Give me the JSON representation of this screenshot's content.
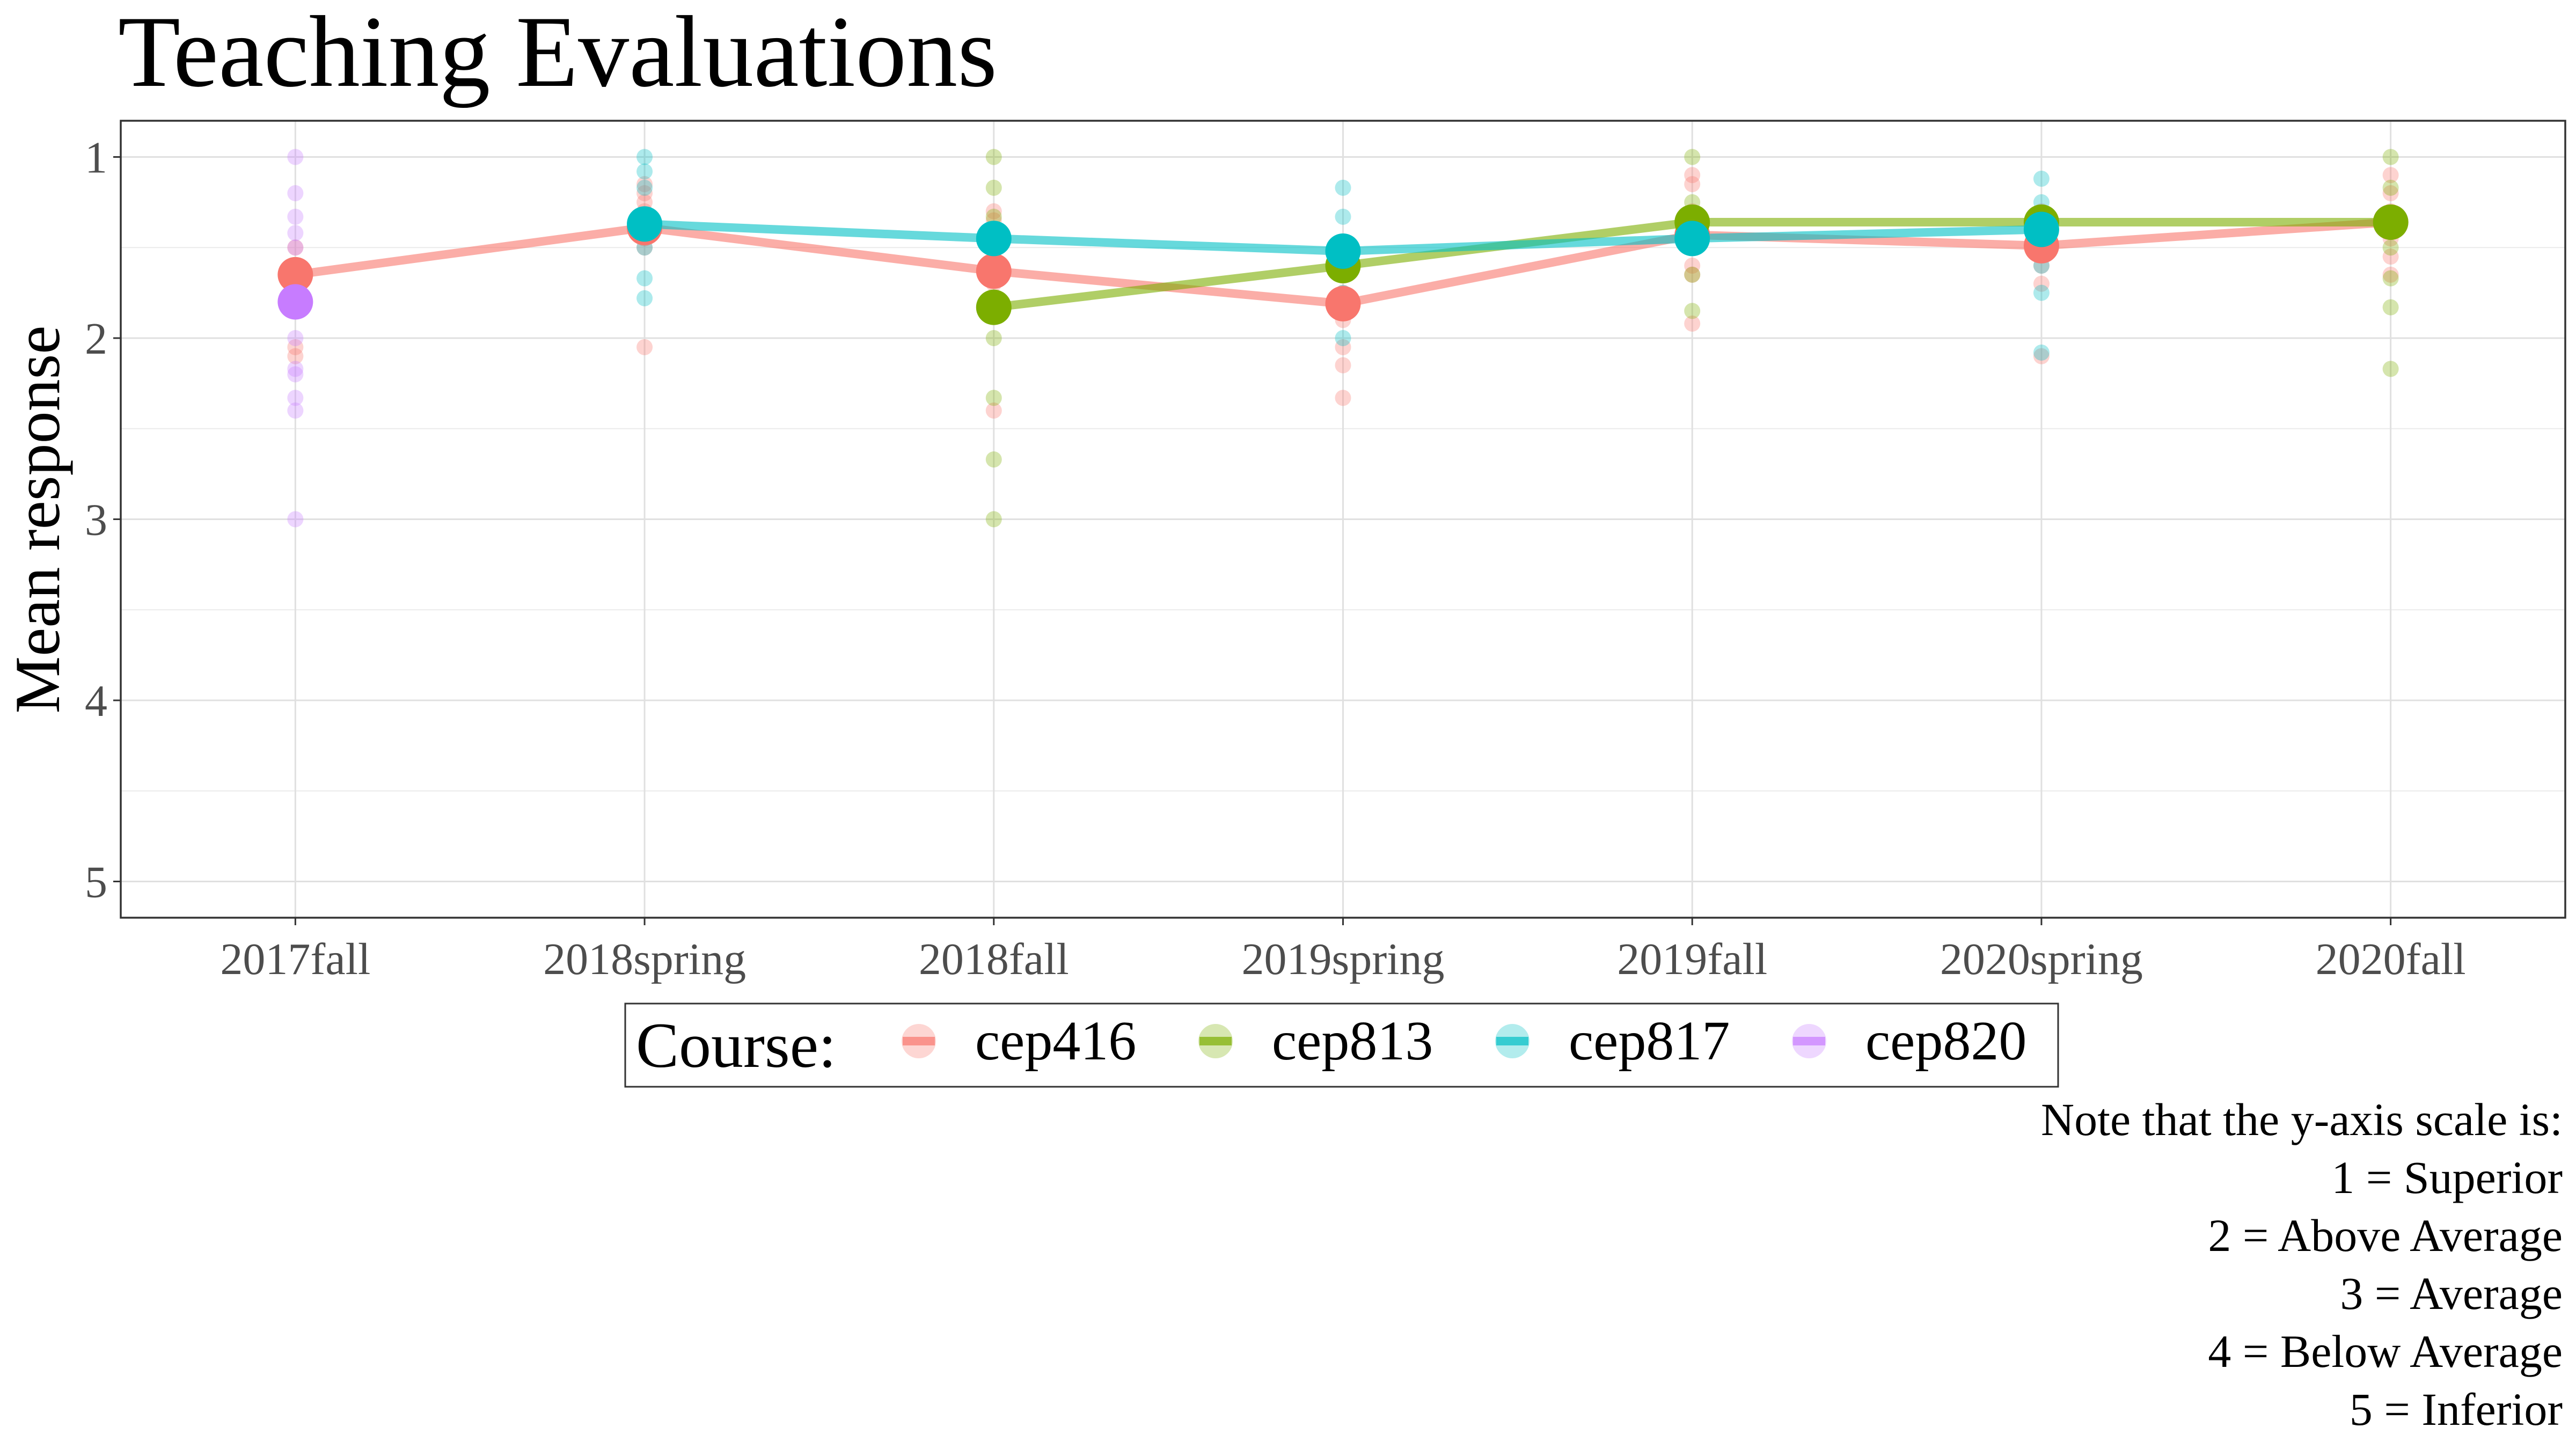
{
  "chart_data": {
    "type": "line",
    "title": "Teaching Evaluations",
    "xlabel": "",
    "ylabel": "Mean response",
    "categories": [
      "2017fall",
      "2018spring",
      "2018fall",
      "2019spring",
      "2019fall",
      "2020spring",
      "2020fall"
    ],
    "ylim": [
      5.2,
      0.8
    ],
    "y_reversed": true,
    "yticks": [
      "1",
      "2",
      "3",
      "4",
      "5"
    ],
    "grid": true,
    "legend": {
      "title": "Course:",
      "position": "bottom",
      "entries": [
        "cep416",
        "cep813",
        "cep817",
        "cep820"
      ]
    },
    "series": [
      {
        "name": "cep416",
        "color": "#F8766D",
        "values": [
          1.65,
          1.39,
          1.63,
          1.81,
          1.43,
          1.49,
          1.36
        ],
        "items": [
          [
            1.5,
            1.6,
            2.05,
            2.1
          ],
          [
            1.15,
            1.2,
            1.25,
            1.3,
            1.45,
            1.5,
            2.05
          ],
          [
            1.3,
            1.35,
            1.45,
            1.5,
            1.6,
            1.7,
            2.4
          ],
          [
            1.55,
            1.65,
            1.75,
            1.9,
            2.05,
            2.15,
            2.33
          ],
          [
            1.1,
            1.15,
            1.3,
            1.5,
            1.6,
            1.65,
            1.92
          ],
          [
            1.3,
            1.4,
            1.5,
            1.6,
            1.7,
            2.1
          ],
          [
            1.1,
            1.2,
            1.3,
            1.45,
            1.55,
            1.65
          ]
        ]
      },
      {
        "name": "cep813",
        "color": "#7CAE00",
        "values": [
          null,
          null,
          1.83,
          1.6,
          1.36,
          1.36,
          1.36
        ],
        "items": [
          [],
          [],
          [
            1.0,
            1.17,
            1.33,
            2.0,
            2.33,
            2.67,
            3.0
          ],
          [
            1.6
          ],
          [
            1.0,
            1.25,
            1.5,
            1.65,
            1.85
          ],
          [
            1.36
          ],
          [
            1.0,
            1.17,
            1.5,
            1.67,
            1.83,
            2.17
          ]
        ]
      },
      {
        "name": "cep817",
        "color": "#00BFC4",
        "values": [
          null,
          1.37,
          1.45,
          1.52,
          1.45,
          1.4,
          null
        ],
        "items": [
          [],
          [
            1.0,
            1.08,
            1.17,
            1.33,
            1.5,
            1.67,
            1.78
          ],
          [],
          [
            1.17,
            1.33,
            1.5,
            1.75,
            2.0
          ],
          [],
          [
            1.12,
            1.25,
            1.33,
            1.6,
            1.75,
            2.08
          ],
          []
        ]
      },
      {
        "name": "cep820",
        "color": "#C77CFF",
        "values": [
          1.8,
          null,
          null,
          null,
          null,
          null,
          null
        ],
        "items": [
          [
            1.0,
            1.2,
            1.33,
            1.42,
            1.5,
            1.6,
            2.0,
            2.17,
            2.2,
            2.33,
            2.4,
            3.0
          ],
          [],
          [],
          [],
          [],
          [],
          []
        ]
      }
    ]
  },
  "note": {
    "lines": [
      "Note that the y-axis scale is:",
      "1 = Superior",
      "2 = Above Average",
      "3 = Average",
      "4 = Below Average",
      "5 = Inferior"
    ]
  }
}
